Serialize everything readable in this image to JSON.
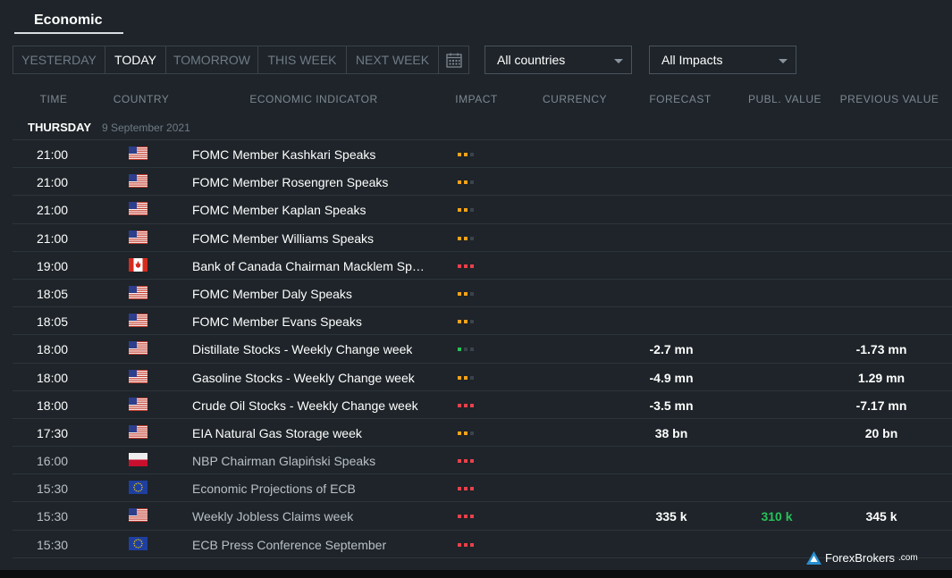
{
  "header": {
    "title": "Economic"
  },
  "day_tabs": [
    {
      "label": "YESTERDAY",
      "active": false
    },
    {
      "label": "TODAY",
      "active": true
    },
    {
      "label": "TOMORROW",
      "active": false
    },
    {
      "label": "THIS WEEK",
      "active": false
    },
    {
      "label": "NEXT WEEK",
      "active": false
    }
  ],
  "filters": {
    "country": "All countries",
    "impact": "All Impacts"
  },
  "columns": {
    "time": "TIME",
    "country": "COUNTRY",
    "indicator": "ECONOMIC INDICATOR",
    "impact": "IMPACT",
    "currency": "CURRENCY",
    "forecast": "FORECAST",
    "publ_value": "PUBL. VALUE",
    "previous": "PREVIOUS VALUE"
  },
  "day": {
    "name": "THURSDAY",
    "date": "9 September 2021"
  },
  "colors": {
    "impact_orange": "#f7a21b",
    "impact_red": "#e8414b",
    "impact_green": "#27c25a",
    "impact_off": "#3a434b",
    "publ_green": "#27c25a"
  },
  "rows": [
    {
      "time": "21:00",
      "flag": "us",
      "name": "FOMC Member Kashkari Speaks",
      "impact": [
        "orange",
        "orange",
        "off"
      ],
      "forecast": "",
      "publ": "",
      "previous": "",
      "dim": false
    },
    {
      "time": "21:00",
      "flag": "us",
      "name": "FOMC Member Rosengren Speaks",
      "impact": [
        "orange",
        "orange",
        "off"
      ],
      "forecast": "",
      "publ": "",
      "previous": "",
      "dim": false
    },
    {
      "time": "21:00",
      "flag": "us",
      "name": "FOMC Member Kaplan Speaks",
      "impact": [
        "orange",
        "orange",
        "off"
      ],
      "forecast": "",
      "publ": "",
      "previous": "",
      "dim": false
    },
    {
      "time": "21:00",
      "flag": "us",
      "name": "FOMC Member Williams Speaks",
      "impact": [
        "orange",
        "orange",
        "off"
      ],
      "forecast": "",
      "publ": "",
      "previous": "",
      "dim": false
    },
    {
      "time": "19:00",
      "flag": "ca",
      "name": "Bank of Canada Chairman Macklem Speaks",
      "impact": [
        "red",
        "red",
        "red"
      ],
      "forecast": "",
      "publ": "",
      "previous": "",
      "dim": false
    },
    {
      "time": "18:05",
      "flag": "us",
      "name": "FOMC Member Daly Speaks",
      "impact": [
        "orange",
        "orange",
        "off"
      ],
      "forecast": "",
      "publ": "",
      "previous": "",
      "dim": false
    },
    {
      "time": "18:05",
      "flag": "us",
      "name": "FOMC Member Evans Speaks",
      "impact": [
        "orange",
        "orange",
        "off"
      ],
      "forecast": "",
      "publ": "",
      "previous": "",
      "dim": false
    },
    {
      "time": "18:00",
      "flag": "us",
      "name": "Distillate Stocks - Weekly Change week",
      "impact": [
        "green",
        "off",
        "off"
      ],
      "forecast": "-2.7 mn",
      "publ": "",
      "previous": "-1.73 mn",
      "dim": false
    },
    {
      "time": "18:00",
      "flag": "us",
      "name": "Gasoline Stocks - Weekly Change week",
      "impact": [
        "orange",
        "orange",
        "off"
      ],
      "forecast": "-4.9 mn",
      "publ": "",
      "previous": "1.29 mn",
      "dim": false
    },
    {
      "time": "18:00",
      "flag": "us",
      "name": "Crude Oil Stocks - Weekly Change week",
      "impact": [
        "red",
        "red",
        "red"
      ],
      "forecast": "-3.5 mn",
      "publ": "",
      "previous": "-7.17 mn",
      "dim": false
    },
    {
      "time": "17:30",
      "flag": "us",
      "name": "EIA Natural Gas Storage week",
      "impact": [
        "orange",
        "orange",
        "off"
      ],
      "forecast": "38 bn",
      "publ": "",
      "previous": "20 bn",
      "dim": false
    },
    {
      "time": "16:00",
      "flag": "pl",
      "name": "NBP Chairman Glapiński Speaks",
      "impact": [
        "red",
        "red",
        "red"
      ],
      "forecast": "",
      "publ": "",
      "previous": "",
      "dim": true
    },
    {
      "time": "15:30",
      "flag": "eu",
      "name": "Economic Projections of ECB",
      "impact": [
        "red",
        "red",
        "red"
      ],
      "forecast": "",
      "publ": "",
      "previous": "",
      "dim": true
    },
    {
      "time": "15:30",
      "flag": "us",
      "name": "Weekly Jobless Claims week",
      "impact": [
        "red",
        "red",
        "red"
      ],
      "forecast": "335 k",
      "publ": "310 k",
      "previous": "345 k",
      "dim": true
    },
    {
      "time": "15:30",
      "flag": "eu",
      "name": "ECB Press Conference September",
      "impact": [
        "red",
        "red",
        "red"
      ],
      "forecast": "",
      "publ": "",
      "previous": "",
      "dim": true
    }
  ],
  "watermark": {
    "brand": "ForexBrokers",
    "suffix": ".com"
  }
}
